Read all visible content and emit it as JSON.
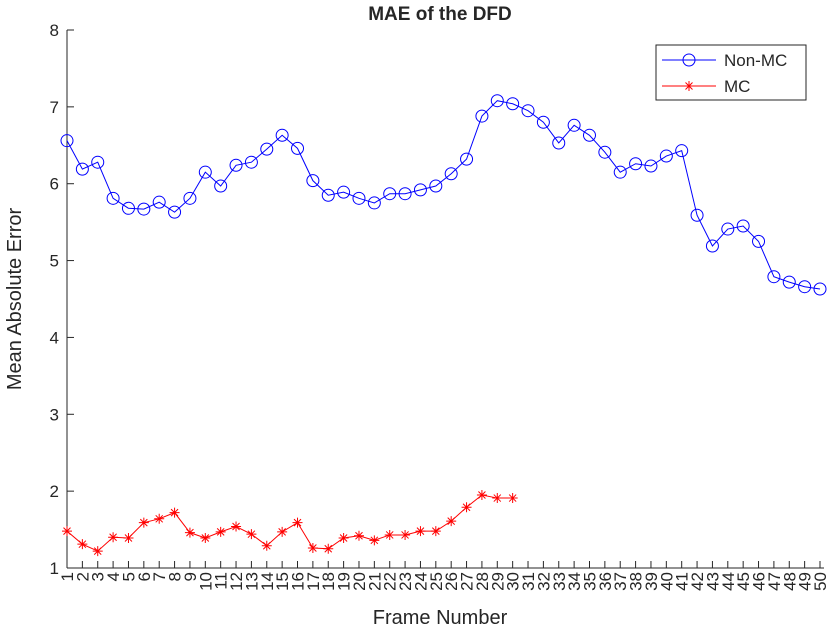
{
  "chart_data": {
    "type": "line",
    "title": "MAE of the DFD",
    "xlabel": "Frame Number",
    "ylabel": "Mean Absolute Error",
    "x": [
      1,
      2,
      3,
      4,
      5,
      6,
      7,
      8,
      9,
      10,
      11,
      12,
      13,
      14,
      15,
      16,
      17,
      18,
      19,
      20,
      21,
      22,
      23,
      24,
      25,
      26,
      27,
      28,
      29,
      30,
      31,
      32,
      33,
      34,
      35,
      36,
      37,
      38,
      39,
      40,
      41,
      42,
      43,
      44,
      45,
      46,
      47,
      48,
      49,
      50
    ],
    "series": [
      {
        "name": "Non-MC",
        "color": "#0000ff",
        "marker": "circle",
        "values": [
          6.56,
          6.19,
          6.28,
          5.81,
          5.68,
          5.67,
          5.76,
          5.63,
          5.81,
          6.15,
          5.97,
          6.24,
          6.28,
          6.45,
          6.63,
          6.46,
          6.04,
          5.85,
          5.89,
          5.81,
          5.75,
          5.87,
          5.87,
          5.92,
          5.97,
          6.13,
          6.32,
          6.88,
          7.08,
          7.04,
          6.95,
          6.8,
          6.53,
          6.76,
          6.63,
          6.41,
          6.15,
          6.26,
          6.23,
          6.36,
          6.43,
          5.59,
          5.19,
          5.41,
          5.45,
          5.25,
          4.79,
          4.72,
          4.66,
          4.63
        ]
      },
      {
        "name": "MC",
        "color": "#ff0000",
        "marker": "asterisk",
        "values": [
          1.48,
          1.31,
          1.22,
          1.4,
          1.39,
          1.59,
          1.64,
          1.72,
          1.46,
          1.39,
          1.47,
          1.54,
          1.44,
          1.29,
          1.47,
          1.59,
          1.26,
          1.25,
          1.39,
          1.42,
          1.36,
          1.43,
          1.43,
          1.48,
          1.48,
          1.61,
          1.79,
          1.95,
          1.91,
          1.91,
          null,
          null,
          null,
          null,
          null,
          null,
          null,
          null,
          null,
          null,
          null,
          null,
          null,
          null,
          null,
          null,
          null,
          null,
          null,
          null
        ]
      }
    ],
    "xlim": [
      1,
      50
    ],
    "xticks": [
      1,
      2,
      3,
      4,
      5,
      6,
      7,
      8,
      9,
      10,
      11,
      12,
      13,
      14,
      15,
      16,
      17,
      18,
      19,
      20,
      21,
      22,
      23,
      24,
      25,
      26,
      27,
      28,
      29,
      30,
      31,
      32,
      33,
      34,
      35,
      36,
      37,
      38,
      39,
      40,
      41,
      42,
      43,
      44,
      45,
      46,
      47,
      48,
      49,
      50
    ],
    "ylim": [
      1,
      8
    ],
    "yticks": [
      1,
      2,
      3,
      4,
      5,
      6,
      7,
      8
    ],
    "legend": "top-right",
    "grid": false
  }
}
